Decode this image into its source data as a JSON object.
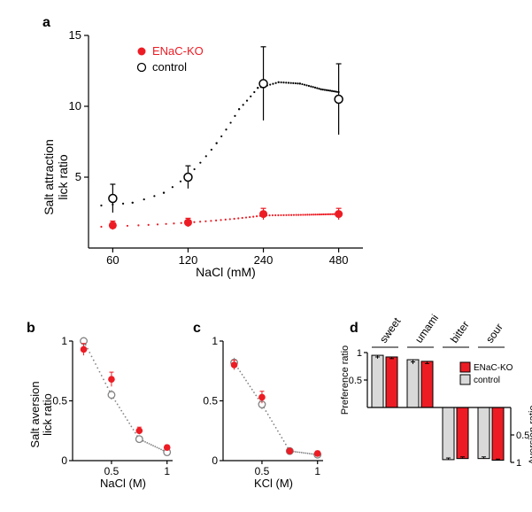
{
  "panel_a": {
    "label": "a",
    "type": "scatter",
    "xlabel": "NaCl (mM)",
    "ylabel": "Salt attraction\nlick ratio",
    "label_fontsize": 14,
    "tick_fontsize": 12,
    "panel_label_fontsize": 16,
    "background_color": "#ffffff",
    "axis_color": "#000000",
    "xScale": "log",
    "xVals": [
      60,
      120,
      240,
      480
    ],
    "xRange": [
      48,
      600
    ],
    "yVals": [
      0,
      5,
      10,
      15
    ],
    "yRange": [
      0,
      15
    ],
    "yTicks": [
      5,
      10,
      15
    ],
    "legend": [
      {
        "name": "ENaC-KO",
        "marker": "filled-circle",
        "color": "#ed1c24"
      },
      {
        "name": "control",
        "marker": "open-circle",
        "color": "#000000"
      }
    ],
    "series": {
      "control": {
        "color": "#000000",
        "marker": "open-circle",
        "data": [
          {
            "x": 60,
            "y": 3.5,
            "err": 1.0
          },
          {
            "x": 120,
            "y": 5.0,
            "err": 0.8
          },
          {
            "x": 240,
            "y": 11.6,
            "err": 2.6
          },
          {
            "x": 480,
            "y": 10.5,
            "err": 2.5
          }
        ],
        "curvePath": "dotted",
        "curveCtrl": [
          [
            54,
            3.0
          ],
          [
            72,
            3.2
          ],
          [
            96,
            3.9
          ],
          [
            120,
            5.1
          ],
          [
            156,
            7.4
          ],
          [
            192,
            9.8
          ],
          [
            228,
            11.3
          ],
          [
            276,
            11.7
          ],
          [
            336,
            11.6
          ],
          [
            408,
            11.2
          ],
          [
            480,
            11.0
          ]
        ]
      },
      "enac": {
        "color": "#ed1c24",
        "marker": "filled-circle",
        "data": [
          {
            "x": 60,
            "y": 1.6,
            "err": 0.3
          },
          {
            "x": 120,
            "y": 1.8,
            "err": 0.3
          },
          {
            "x": 240,
            "y": 2.4,
            "err": 0.4
          },
          {
            "x": 480,
            "y": 2.4,
            "err": 0.4
          }
        ],
        "curvePath": "dotted",
        "curveCtrl": [
          [
            54,
            1.5
          ],
          [
            120,
            1.8
          ],
          [
            240,
            2.3
          ],
          [
            480,
            2.4
          ]
        ]
      }
    }
  },
  "panel_b": {
    "label": "b",
    "type": "scatter",
    "xlabel": "NaCl (M)",
    "ylabel": "Salt aversion\nlick ratio",
    "xScale": "linear",
    "xVals": [
      0.25,
      0.5,
      0.75,
      1.0
    ],
    "xTicks": [
      0.5,
      1
    ],
    "yVals": [
      0,
      0.5,
      1
    ],
    "yTicks": [
      0,
      0.5,
      1
    ],
    "series": {
      "control": {
        "color": "#838383",
        "marker": "open-circle",
        "line": "dotted",
        "data": [
          {
            "x": 0.25,
            "y": 1.0,
            "err": 0.02
          },
          {
            "x": 0.5,
            "y": 0.55,
            "err": 0.04
          },
          {
            "x": 0.75,
            "y": 0.18,
            "err": 0.03
          },
          {
            "x": 1.0,
            "y": 0.07,
            "err": 0.02
          }
        ]
      },
      "enac": {
        "color": "#ed1c24",
        "marker": "filled-circle",
        "data": [
          {
            "x": 0.25,
            "y": 0.93,
            "err": 0.05
          },
          {
            "x": 0.5,
            "y": 0.68,
            "err": 0.06
          },
          {
            "x": 0.75,
            "y": 0.25,
            "err": 0.03
          },
          {
            "x": 1.0,
            "y": 0.11,
            "err": 0.02
          }
        ]
      }
    }
  },
  "panel_c": {
    "label": "c",
    "type": "scatter",
    "xlabel": "KCl (M)",
    "xScale": "linear",
    "xVals": [
      0.25,
      0.5,
      0.75,
      1.0
    ],
    "xTicks": [
      0.5,
      1
    ],
    "yVals": [
      0,
      0.5,
      1
    ],
    "yTicks": [
      0,
      0.5,
      1
    ],
    "series": {
      "control": {
        "color": "#838383",
        "marker": "open-circle",
        "line": "dotted",
        "data": [
          {
            "x": 0.25,
            "y": 0.82,
            "err": 0.04
          },
          {
            "x": 0.5,
            "y": 0.47,
            "err": 0.04
          },
          {
            "x": 0.75,
            "y": 0.08,
            "err": 0.02
          },
          {
            "x": 1.0,
            "y": 0.05,
            "err": 0.02
          }
        ]
      },
      "enac": {
        "color": "#ed1c24",
        "marker": "filled-circle",
        "data": [
          {
            "x": 0.25,
            "y": 0.8,
            "err": 0.04
          },
          {
            "x": 0.5,
            "y": 0.53,
            "err": 0.05
          },
          {
            "x": 0.75,
            "y": 0.08,
            "err": 0.02
          },
          {
            "x": 1.0,
            "y": 0.06,
            "err": 0.02
          }
        ]
      }
    }
  },
  "panel_d": {
    "label": "d",
    "type": "bar",
    "top_label": "Preference ratio",
    "bottom_label": "Aversion ratio",
    "top_ticks": [
      0.5,
      1
    ],
    "bottom_ticks": [
      0.5,
      1
    ],
    "groups": [
      "sweet",
      "umami",
      "bitter",
      "sour"
    ],
    "legend": [
      {
        "name": "ENaC-KO",
        "fill": "#ed1c24",
        "stroke": "#000000"
      },
      {
        "name": "control",
        "fill": "#d9d9d9",
        "stroke": "#000000"
      }
    ],
    "bars": {
      "sweet": {
        "control": 0.95,
        "enac": 0.92,
        "dir": "up",
        "c_err": 0.03,
        "e_err": 0.03
      },
      "umami": {
        "control": 0.87,
        "enac": 0.84,
        "dir": "up",
        "c_err": 0.04,
        "e_err": 0.04
      },
      "bitter": {
        "control": 0.95,
        "enac": 0.93,
        "dir": "down",
        "c_err": 0.03,
        "e_err": 0.03
      },
      "sour": {
        "control": 0.93,
        "enac": 0.96,
        "dir": "down",
        "c_err": 0.03,
        "e_err": 0.02
      }
    },
    "colors": {
      "control": "#d9d9d9",
      "enac": "#ed1c24",
      "stroke": "#000000"
    }
  },
  "fontsize": {
    "panel_label": 16,
    "axis_label": 13,
    "tick": 12,
    "legend": 12,
    "group": 12
  }
}
